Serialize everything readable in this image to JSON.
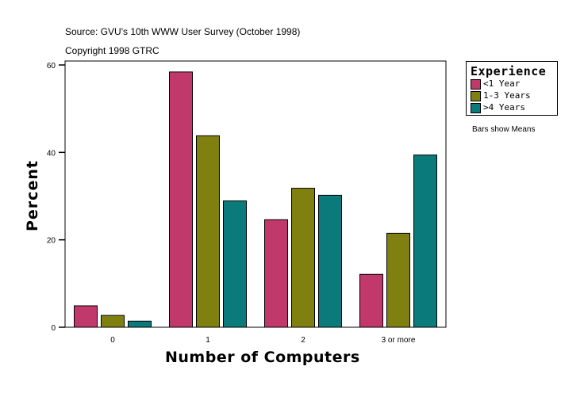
{
  "notes": {
    "source": "Source: GVU's 10th WWW User Survey (October 1998)",
    "copyright": "Copyright 1998 GTRC",
    "bars_note": "Bars show Means"
  },
  "chart_data": {
    "type": "bar",
    "title": "",
    "xlabel": "Number of Computers",
    "ylabel": "Percent",
    "categories": [
      "0",
      "1",
      "2",
      "3 or more"
    ],
    "ylim": [
      0,
      60
    ],
    "yticks": [
      0,
      20,
      40,
      60
    ],
    "grid": false,
    "legend": {
      "title": "Experience",
      "placement": "right"
    },
    "series": [
      {
        "name": "<1 Year",
        "color": "#c0396a",
        "values": [
          4.9,
          58.4,
          24.6,
          12.1
        ]
      },
      {
        "name": "1-3 Years",
        "color": "#808010",
        "values": [
          2.7,
          43.8,
          31.8,
          21.5
        ]
      },
      {
        "name": ">4 Years",
        "color": "#0a7a7a",
        "values": [
          1.4,
          28.9,
          30.2,
          39.4
        ]
      }
    ]
  }
}
